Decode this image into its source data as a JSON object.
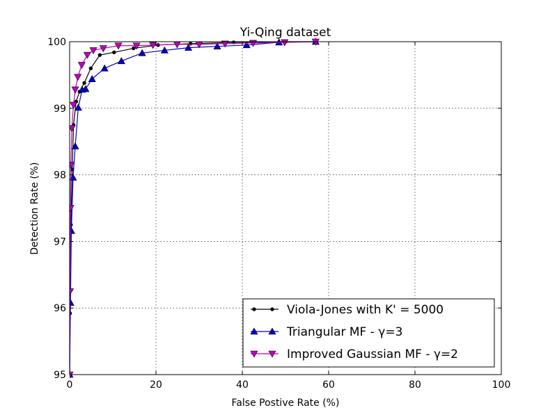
{
  "chart_data": {
    "type": "line",
    "title": "Yi-Qing dataset",
    "xlabel": "False Postive Rate (%)",
    "ylabel": "Detection Rate (%)",
    "xlim": [
      0,
      100
    ],
    "ylim": [
      95,
      100
    ],
    "xticks": [
      0,
      20,
      40,
      60,
      80,
      100
    ],
    "yticks": [
      95,
      96,
      97,
      98,
      99,
      100
    ],
    "xtick_labels": [
      "0",
      "20",
      "40",
      "60",
      "80",
      "100"
    ],
    "ytick_labels": [
      "95",
      "96",
      "97",
      "98",
      "99",
      "100"
    ],
    "grid": true,
    "legend_position": "lower-right",
    "series": [
      {
        "name": "Viola-Jones with K' = 5000",
        "color": "#000000",
        "marker": "point",
        "x": [
          0,
          0.1,
          0.3,
          0.6,
          0.9,
          1.5,
          2.3,
          3.4,
          4.9,
          7.0,
          10.3,
          14.8,
          20.5,
          28,
          38,
          50,
          57
        ],
        "y": [
          95.0,
          95.92,
          97.25,
          98.08,
          98.75,
          99.1,
          99.25,
          99.38,
          99.6,
          99.8,
          99.84,
          99.9,
          99.95,
          99.97,
          99.99,
          100.0,
          100.0
        ]
      },
      {
        "name": "Triangular MF - γ=3",
        "color": "#0000cc",
        "marker": "triangle-up",
        "x": [
          0,
          0.2,
          0.4,
          0.8,
          1.3,
          2.0,
          2.9,
          3.7,
          5.2,
          8.1,
          12.0,
          16.8,
          22.0,
          27.5,
          34.2,
          41.0,
          48.5,
          57
        ],
        "y": [
          95.0,
          96.08,
          97.16,
          97.96,
          98.43,
          99.01,
          99.28,
          99.29,
          99.44,
          99.6,
          99.71,
          99.83,
          99.87,
          99.91,
          99.93,
          99.95,
          99.99,
          100.0
        ]
      },
      {
        "name": "Improved Gaussian MF - γ=2",
        "color": "#bf00bf",
        "marker": "triangle-down",
        "x": [
          0,
          0.1,
          0.2,
          0.3,
          0.5,
          0.9,
          1.3,
          1.9,
          2.8,
          4.1,
          5.5,
          7.8,
          11.3,
          15.5,
          19.3,
          24.9,
          30.0,
          36.0,
          42.5,
          49.8,
          57
        ],
        "y": [
          95.0,
          96.25,
          97.5,
          98.15,
          98.7,
          99.05,
          99.28,
          99.47,
          99.65,
          99.8,
          99.87,
          99.9,
          99.94,
          99.94,
          99.95,
          99.96,
          99.96,
          99.97,
          99.98,
          99.99,
          100.0
        ]
      }
    ]
  }
}
